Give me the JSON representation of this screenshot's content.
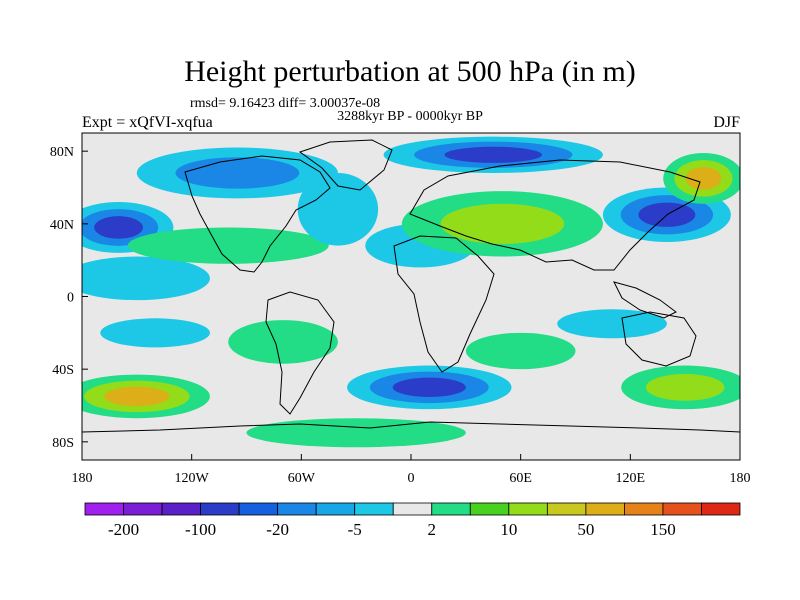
{
  "chart_data": {
    "type": "heatmap",
    "title": "Height perturbation at 500 hPa (in m)",
    "subtitle_stats": "rmsd= 9.16423 diff= 3.00037e-08",
    "subtitle_period": "3288kyr BP - 0000kyr BP",
    "left_label": "Expt = xQfVI-xqfua",
    "right_label": "DJF",
    "xlim": [
      -180,
      180
    ],
    "ylim": [
      -90,
      90
    ],
    "x_ticks": [
      {
        "value": -180,
        "label": "180"
      },
      {
        "value": -120,
        "label": "120W"
      },
      {
        "value": -60,
        "label": "60W"
      },
      {
        "value": 0,
        "label": "0"
      },
      {
        "value": 60,
        "label": "60E"
      },
      {
        "value": 120,
        "label": "120E"
      },
      {
        "value": 180,
        "label": "180"
      }
    ],
    "y_ticks": [
      {
        "value": 80,
        "label": "80N"
      },
      {
        "value": 40,
        "label": "40N"
      },
      {
        "value": 0,
        "label": "0"
      },
      {
        "value": -40,
        "label": "40S"
      },
      {
        "value": -80,
        "label": "80S"
      }
    ],
    "colorbar": {
      "colors": [
        "#a020f0",
        "#7a1fd6",
        "#5a20c8",
        "#2a3cc8",
        "#1560e0",
        "#1a86e6",
        "#18a6e8",
        "#1cc8e6",
        "#e8e8e8",
        "#22dc86",
        "#46d21e",
        "#92dc1a",
        "#c8c81e",
        "#dcae18",
        "#e6821a",
        "#e6501a",
        "#dc2814"
      ],
      "labels": [
        {
          "after_bin": 1,
          "text": "-200"
        },
        {
          "after_bin": 3,
          "text": "-100"
        },
        {
          "after_bin": 5,
          "text": "-20"
        },
        {
          "after_bin": 7,
          "text": "-5"
        },
        {
          "after_bin": 9,
          "text": "2"
        },
        {
          "after_bin": 11,
          "text": "10"
        },
        {
          "after_bin": 13,
          "text": "50"
        },
        {
          "after_bin": 15,
          "text": "150"
        }
      ]
    },
    "field_blobs": [
      {
        "lon": -160,
        "lat": 38,
        "rlon": 30,
        "rlat": 14,
        "level": -3
      },
      {
        "lon": -150,
        "lat": 10,
        "rlon": 40,
        "rlat": 12,
        "level": -1
      },
      {
        "lon": -100,
        "lat": 28,
        "rlon": 55,
        "rlat": 10,
        "level": 1
      },
      {
        "lon": -95,
        "lat": 68,
        "rlon": 55,
        "rlat": 14,
        "level": -2
      },
      {
        "lon": -40,
        "lat": 48,
        "rlon": 22,
        "rlat": 20,
        "level": -1
      },
      {
        "lon": 5,
        "lat": 28,
        "rlon": 30,
        "rlat": 12,
        "level": -1
      },
      {
        "lon": 45,
        "lat": 78,
        "rlon": 60,
        "rlat": 10,
        "level": -3
      },
      {
        "lon": 50,
        "lat": 40,
        "rlon": 55,
        "rlat": 18,
        "level": 2
      },
      {
        "lon": 140,
        "lat": 45,
        "rlon": 35,
        "rlat": 15,
        "level": -3
      },
      {
        "lon": 160,
        "lat": 65,
        "rlon": 22,
        "rlat": 14,
        "level": 3
      },
      {
        "lon": -140,
        "lat": -20,
        "rlon": 30,
        "rlat": 8,
        "level": -1
      },
      {
        "lon": -150,
        "lat": -55,
        "rlon": 40,
        "rlat": 12,
        "level": 3
      },
      {
        "lon": -70,
        "lat": -25,
        "rlon": 30,
        "rlat": 12,
        "level": 1
      },
      {
        "lon": 10,
        "lat": -50,
        "rlon": 45,
        "rlat": 12,
        "level": -3
      },
      {
        "lon": 60,
        "lat": -30,
        "rlon": 30,
        "rlat": 10,
        "level": 1
      },
      {
        "lon": 110,
        "lat": -15,
        "rlon": 30,
        "rlat": 8,
        "level": -1
      },
      {
        "lon": 150,
        "lat": -50,
        "rlon": 35,
        "rlat": 12,
        "level": 2
      },
      {
        "lon": -30,
        "lat": -75,
        "rlon": 60,
        "rlat": 8,
        "level": 1
      }
    ]
  }
}
